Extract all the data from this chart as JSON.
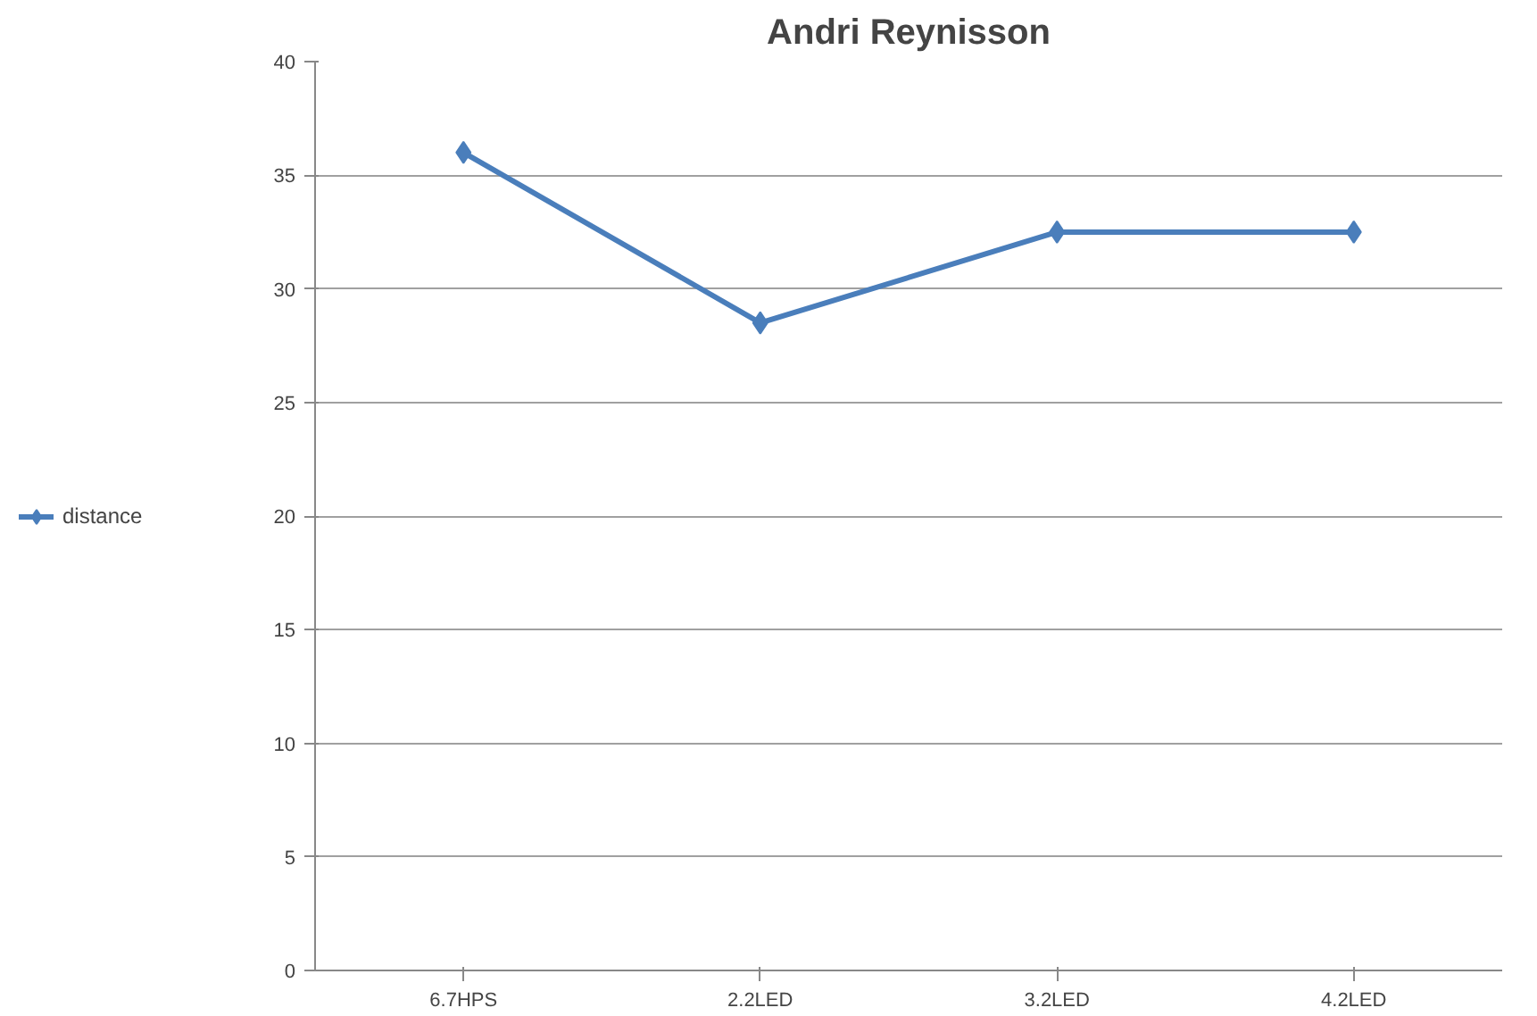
{
  "chart_data": {
    "type": "line",
    "title": "Andri Reynisson",
    "categories": [
      "6.7HPS",
      "2.2LED",
      "3.2LED",
      "4.2LED"
    ],
    "series": [
      {
        "name": "distance",
        "color": "#4a7ebb",
        "values": [
          36,
          28.5,
          32.5,
          32.5
        ]
      }
    ],
    "ylim": [
      0,
      40
    ],
    "yticks": [
      0,
      5,
      10,
      15,
      20,
      25,
      30,
      35,
      40
    ],
    "grid": "y",
    "legend": "left",
    "marker": "diamond",
    "line_style": "solid"
  }
}
